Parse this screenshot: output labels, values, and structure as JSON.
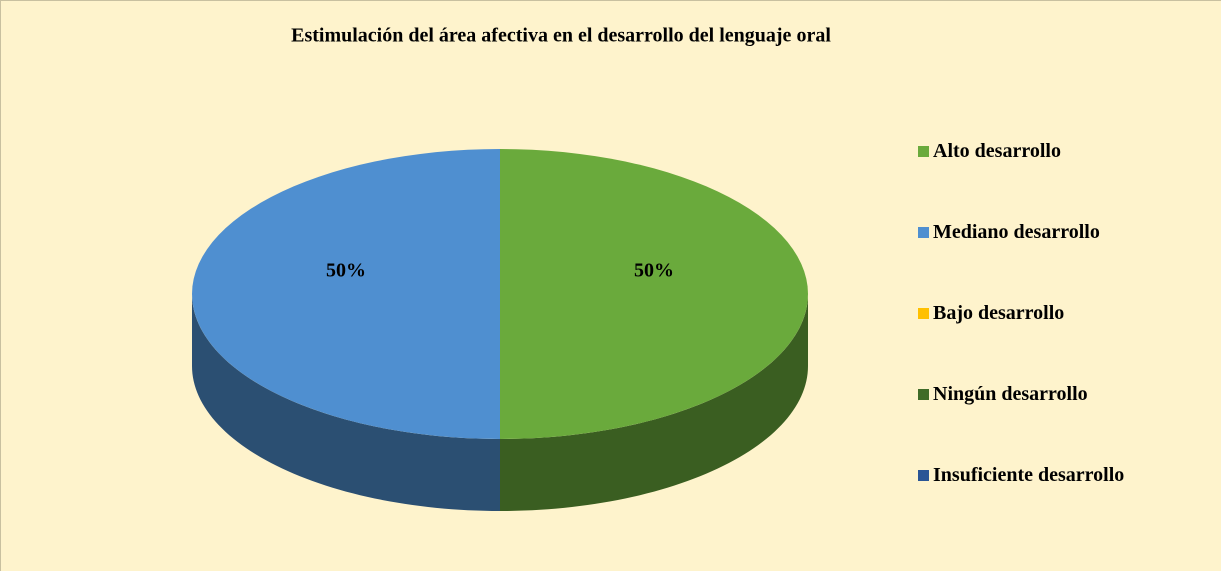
{
  "chart_data": {
    "type": "pie3d",
    "title": "Estimulación del área afectiva en el desarrollo del lenguaje oral",
    "categories": [
      "Alto desarrollo",
      "Mediano desarrollo",
      "Bajo desarrollo",
      "Ningún desarrollo",
      "Insuficiente desarrollo"
    ],
    "values": [
      50,
      50,
      0,
      0,
      0
    ],
    "value_labels": [
      "50%",
      "50%",
      null,
      null,
      null
    ],
    "colors": [
      "#6aaa3c",
      "#4f8fd0",
      "#ffc000",
      "#3f6b27",
      "#2a5595"
    ],
    "legend": "right"
  }
}
